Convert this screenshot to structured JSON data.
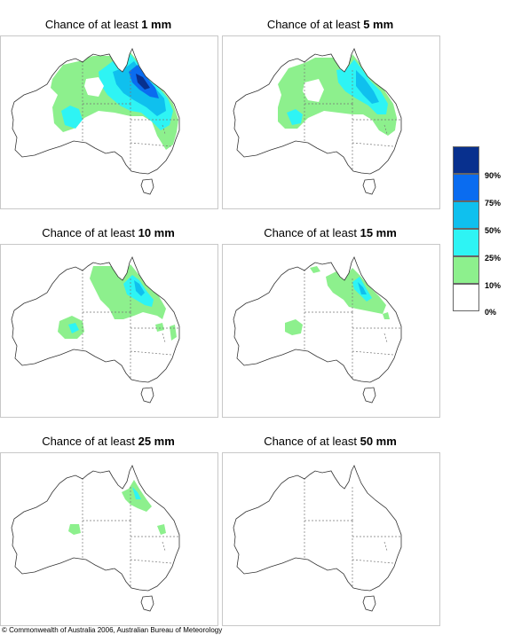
{
  "title_prefix": "Chance of at least ",
  "panels": [
    {
      "amount": "1 mm"
    },
    {
      "amount": "5 mm"
    },
    {
      "amount": "10 mm"
    },
    {
      "amount": "15 mm"
    },
    {
      "amount": "25 mm"
    },
    {
      "amount": "50 mm"
    }
  ],
  "legend": {
    "labels": [
      "90%",
      "75%",
      "50%",
      "25%",
      "10%",
      "0%"
    ],
    "colors": [
      "#08308e",
      "#0a6cf0",
      "#0fc0ee",
      "#2ef4f4",
      "#8df08d",
      "#ffffff"
    ]
  },
  "footer": "© Commonwealth of Australia 2006, Australian Bureau of Meteorology"
}
